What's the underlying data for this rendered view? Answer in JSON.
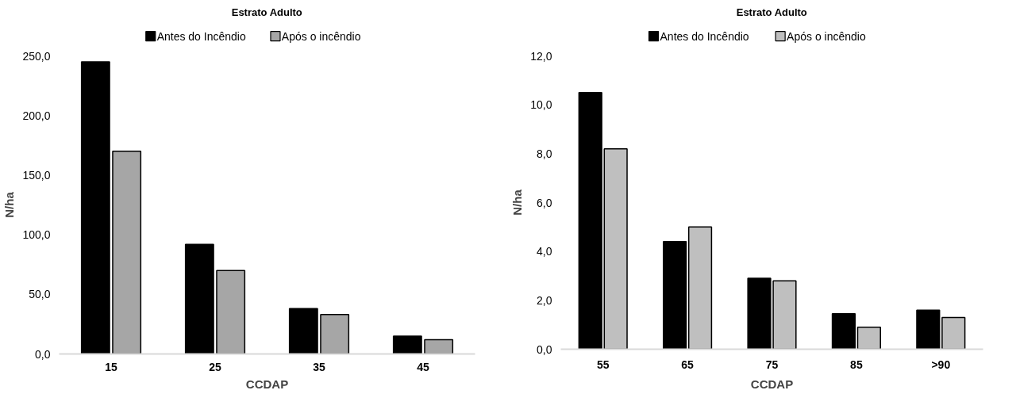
{
  "chart_data": [
    {
      "type": "bar",
      "title": "Estrato Adulto",
      "xlabel": "CCDAP",
      "ylabel": "N/ha",
      "categories": [
        "15",
        "25",
        "35",
        "45"
      ],
      "series": [
        {
          "name": "Antes do Incêndio",
          "color": "#000000",
          "values": [
            245,
            92,
            38,
            15
          ]
        },
        {
          "name": "Após o incêndio",
          "color": "#a6a6a6",
          "values": [
            170,
            70,
            33,
            12
          ]
        }
      ],
      "ylim": [
        0,
        250
      ],
      "yticks": [
        {
          "value": 0,
          "label": "0,0"
        },
        {
          "value": 50,
          "label": "50,0"
        },
        {
          "value": 100,
          "label": "100,0"
        },
        {
          "value": 150,
          "label": "150,0"
        },
        {
          "value": 200,
          "label": "200,0"
        },
        {
          "value": 250,
          "label": "250,0"
        }
      ],
      "grid": false,
      "legend": "top"
    },
    {
      "type": "bar",
      "title": "Estrato Adulto",
      "xlabel": "CCDAP",
      "ylabel": "N/ha",
      "categories": [
        "55",
        "65",
        "75",
        "85",
        ">90"
      ],
      "series": [
        {
          "name": "Antes do Incêndio",
          "color": "#000000",
          "values": [
            10.5,
            4.4,
            2.9,
            1.45,
            1.6
          ]
        },
        {
          "name": "Após o incêndio",
          "color": "#bfbfbf",
          "values": [
            8.2,
            5.0,
            2.8,
            0.9,
            1.3
          ]
        }
      ],
      "ylim": [
        0,
        12
      ],
      "yticks": [
        {
          "value": 0,
          "label": "0,0"
        },
        {
          "value": 2,
          "label": "2,0"
        },
        {
          "value": 4,
          "label": "4,0"
        },
        {
          "value": 6,
          "label": "6,0"
        },
        {
          "value": 8,
          "label": "8,0"
        },
        {
          "value": 10,
          "label": "10,0"
        },
        {
          "value": 12,
          "label": "12,0"
        }
      ],
      "grid": false,
      "legend": "top"
    }
  ]
}
